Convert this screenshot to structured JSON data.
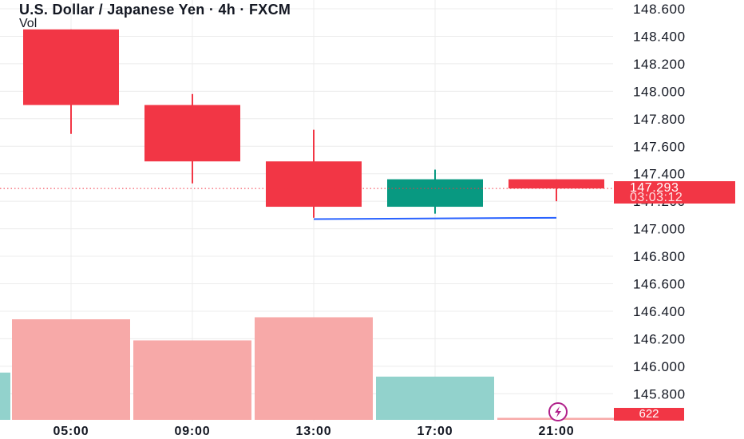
{
  "header": {
    "title": "U.S. Dollar / Japanese Yen · 4h · FXCM",
    "vol_label": "Vol"
  },
  "last_price": {
    "value": "147.293",
    "countdown": "03:03:12"
  },
  "volume_tag": "622",
  "colors": {
    "up": "#089981",
    "down": "#f23645",
    "volume_down": "#f7a9a8",
    "volume_up": "#92d2cc",
    "trendline": "#2962ff",
    "grid": "#ececec"
  },
  "chart_data": {
    "type": "candlestick",
    "symbol": "U.S. Dollar / Japanese Yen",
    "interval": "4h",
    "source": "FXCM",
    "x_tick_labels": [
      "05:00",
      "09:00",
      "13:00",
      "17:00",
      "21:00"
    ],
    "y_tick_labels": [
      "148.600",
      "148.400",
      "148.200",
      "148.000",
      "147.800",
      "147.600",
      "147.400",
      "147.200",
      "147.000",
      "146.800",
      "146.600",
      "146.400",
      "146.200",
      "146.000",
      "145.800"
    ],
    "ylim": [
      145.6,
      148.66
    ],
    "candles": [
      {
        "time": "05:00",
        "open": 148.45,
        "high": 148.45,
        "low": 147.69,
        "close": 147.9
      },
      {
        "time": "09:00",
        "open": 147.9,
        "high": 147.98,
        "low": 147.33,
        "close": 147.49
      },
      {
        "time": "13:00",
        "open": 147.49,
        "high": 147.72,
        "low": 147.08,
        "close": 147.16
      },
      {
        "time": "17:00",
        "open": 147.16,
        "high": 147.43,
        "low": 147.11,
        "close": 147.36
      },
      {
        "time": "21:00",
        "open": 147.36,
        "high": 147.36,
        "low": 147.2,
        "close": 147.293
      }
    ],
    "volume": {
      "prev_bar": {
        "value": 0.47,
        "direction": "up"
      },
      "bars": [
        {
          "time": "05:00",
          "value": 1.0,
          "direction": "down"
        },
        {
          "time": "09:00",
          "value": 0.79,
          "direction": "down"
        },
        {
          "time": "13:00",
          "value": 1.02,
          "direction": "down"
        },
        {
          "time": "17:00",
          "value": 0.43,
          "direction": "up"
        },
        {
          "time": "21:00",
          "value": 0.02,
          "direction": "down"
        }
      ]
    },
    "trendline": {
      "from": {
        "time": "13:00",
        "price": 147.07
      },
      "to": {
        "time": "21:00",
        "price": 147.08
      }
    },
    "last_price_line": 147.293,
    "grid": true
  }
}
